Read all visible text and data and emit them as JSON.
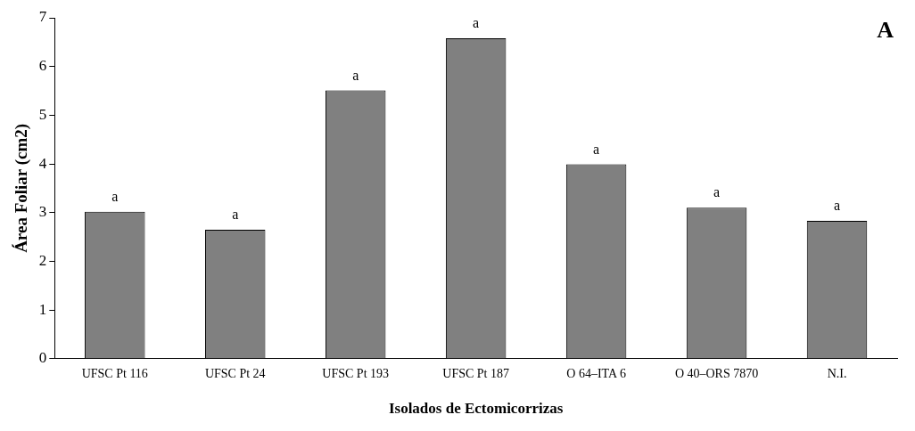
{
  "chart_data": {
    "type": "bar",
    "xlabel": "Isolados de Ectomicorrizas",
    "ylabel": "Área Foliar (cm2)",
    "categories": [
      "UFSC Pt 116",
      "UFSC Pt 24",
      "UFSC Pt 193",
      "UFSC Pt 187",
      "O 64–ITA 6",
      "O 40–ORS 7870",
      "N.I."
    ],
    "values": [
      3.02,
      2.65,
      5.51,
      6.58,
      3.99,
      3.1,
      2.83
    ],
    "color": "#808080",
    "ylim": [
      0,
      7
    ],
    "yticks": [
      0,
      1,
      2,
      3,
      4,
      5,
      6,
      7
    ],
    "grid": false,
    "legend": false,
    "annotations": [
      {
        "text": "a",
        "x": "UFSC Pt 116",
        "y": 3.02
      },
      {
        "text": "a",
        "x": "UFSC Pt 24",
        "y": 2.65
      },
      {
        "text": "a",
        "x": "UFSC Pt 193",
        "y": 5.51
      },
      {
        "text": "a",
        "x": "UFSC Pt 187",
        "y": 6.58
      },
      {
        "text": "a",
        "x": "O 64–ITA 6",
        "y": 3.99
      },
      {
        "text": "a",
        "x": "O 40–ORS 7870",
        "y": 3.1
      },
      {
        "text": "a",
        "x": "N.I.",
        "y": 2.83
      },
      "A"
    ]
  }
}
